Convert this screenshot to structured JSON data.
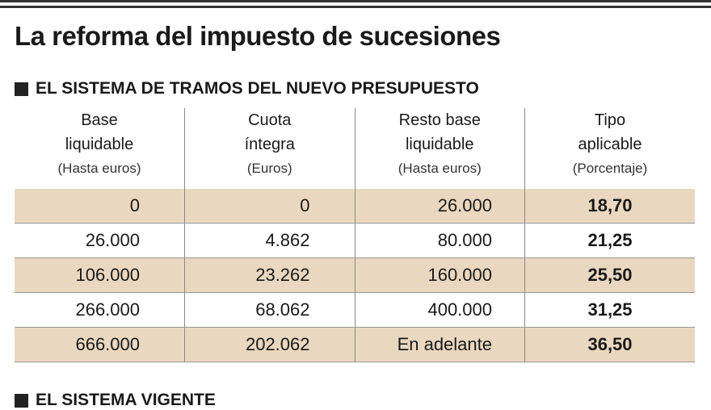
{
  "header": {
    "title": "La reforma del impuesto de sucesiones"
  },
  "section": {
    "title": "EL SISTEMA DE TRAMOS DEL NUEVO PRESUPUESTO"
  },
  "table": {
    "columns": [
      {
        "lines": [
          "Base",
          "liquidable"
        ],
        "note": "(Hasta euros)"
      },
      {
        "lines": [
          "Cuota",
          "íntegra"
        ],
        "note": "(Euros)"
      },
      {
        "lines": [
          "Resto base",
          "liquidable"
        ],
        "note": "(Hasta euros)"
      },
      {
        "lines": [
          "Tipo",
          "aplicable"
        ],
        "note": "(Porcentaje)"
      }
    ],
    "rows": [
      [
        "0",
        "0",
        "26.000",
        "18,70"
      ],
      [
        "26.000",
        "4.862",
        "80.000",
        "21,25"
      ],
      [
        "106.000",
        "23.262",
        "160.000",
        "25,50"
      ],
      [
        "266.000",
        "68.062",
        "400.000",
        "31,25"
      ],
      [
        "666.000",
        "202.062",
        "En adelante",
        "36,50"
      ]
    ]
  },
  "next_section": {
    "title": "EL SISTEMA VIGENTE"
  }
}
